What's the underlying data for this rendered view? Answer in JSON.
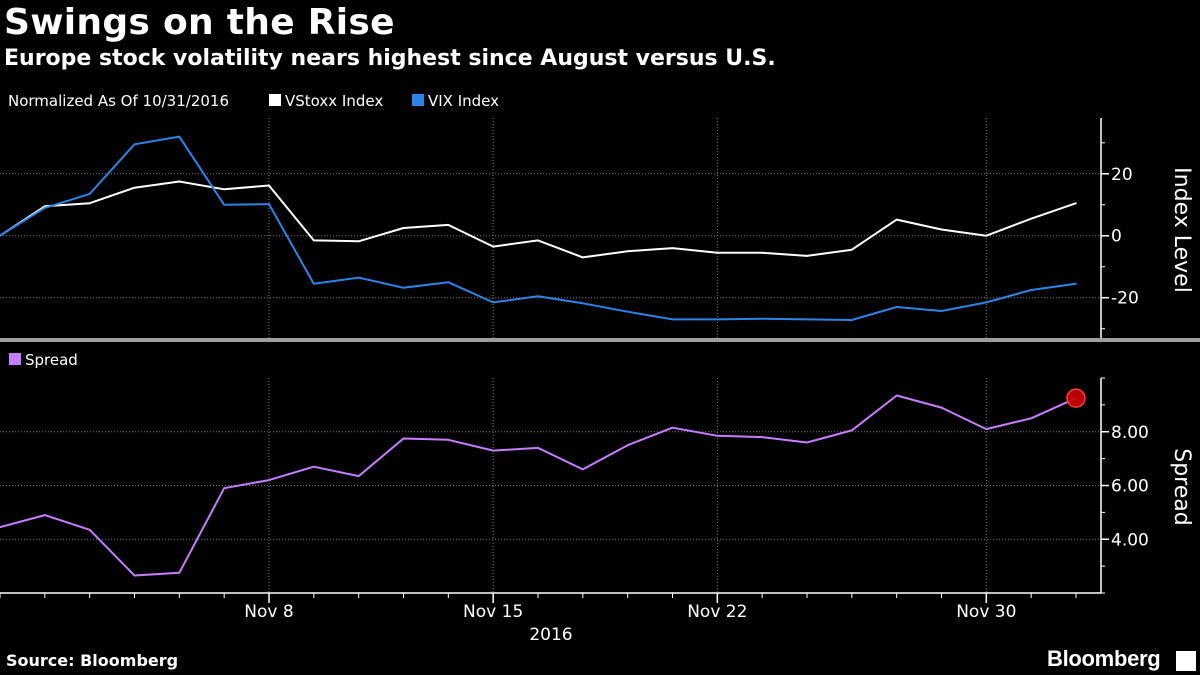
{
  "header": {
    "title": "Swings on the Rise",
    "subtitle": "Europe stock volatility nears highest since August versus U.S."
  },
  "footer": {
    "source": "Source: Bloomberg",
    "brand": "Bloomberg"
  },
  "colors": {
    "background": "#000000",
    "vstoxx": "#ffffff",
    "vix": "#2b84e8",
    "spread": "#c77dff",
    "marker": "#cc0000",
    "grid": "#7a7a7a",
    "divider": "#9e9e9e"
  },
  "chart_data": [
    {
      "type": "line",
      "legend_note": "Normalized As Of 10/31/2016",
      "ylabel": "Index Level",
      "ylim": [
        -33,
        38
      ],
      "yticks": [
        20,
        0,
        -20
      ],
      "ytick_labels": [
        "20",
        "0",
        "-20"
      ],
      "grid": true,
      "legend_position": "top-left",
      "series": [
        {
          "name": "VStoxx Index",
          "color": "#ffffff",
          "values": [
            0,
            9.5,
            10.5,
            15.5,
            17.5,
            15,
            16.2,
            -1.5,
            -1.8,
            2.5,
            3.5,
            -3.5,
            -1.5,
            -7,
            -5,
            -4,
            -5.5,
            -5.5,
            -6.5,
            -4.5,
            5.2,
            2,
            0,
            5.5,
            10.5
          ]
        },
        {
          "name": "VIX Index",
          "color": "#2b84e8",
          "values": [
            0,
            9,
            13.5,
            29.5,
            32,
            10,
            10.2,
            -15.5,
            -13.5,
            -16.8,
            -15,
            -21.5,
            -19.5,
            -21.8,
            -24.5,
            -27,
            -27,
            -26.8,
            -27,
            -27.2,
            -23,
            -24.3,
            -21.5,
            -17.5,
            -15.5
          ]
        }
      ]
    },
    {
      "type": "line",
      "ylabel": "Spread",
      "ylim": [
        2.0,
        10.0
      ],
      "yticks": [
        8.0,
        6.0,
        4.0
      ],
      "ytick_labels": [
        "8.00",
        "6.00",
        "4.00"
      ],
      "grid": true,
      "legend_position": "top-left",
      "series": [
        {
          "name": "Spread",
          "color": "#c77dff",
          "values": [
            4.45,
            4.9,
            4.35,
            2.65,
            2.75,
            5.9,
            6.2,
            6.7,
            6.35,
            7.75,
            7.7,
            7.3,
            7.4,
            6.6,
            7.5,
            8.15,
            7.85,
            7.8,
            7.6,
            8.05,
            9.35,
            8.9,
            8.1,
            8.5,
            9.25
          ]
        }
      ],
      "highlight_last_point": true
    }
  ],
  "x_axis": {
    "dates": [
      "2016-10-31",
      "2016-11-01",
      "2016-11-02",
      "2016-11-03",
      "2016-11-04",
      "2016-11-07",
      "2016-11-08",
      "2016-11-09",
      "2016-11-10",
      "2016-11-11",
      "2016-11-14",
      "2016-11-15",
      "2016-11-16",
      "2016-11-17",
      "2016-11-18",
      "2016-11-21",
      "2016-11-22",
      "2016-11-23",
      "2016-11-24",
      "2016-11-25",
      "2016-11-28",
      "2016-11-29",
      "2016-11-30",
      "2016-12-01",
      "2016-12-02"
    ],
    "tick_labels": [
      {
        "label": "Nov 8",
        "index": 6
      },
      {
        "label": "Nov 15",
        "index": 11
      },
      {
        "label": "Nov 22",
        "index": 16
      },
      {
        "label": "Nov 30",
        "index": 22
      }
    ],
    "year_label": "2016"
  }
}
